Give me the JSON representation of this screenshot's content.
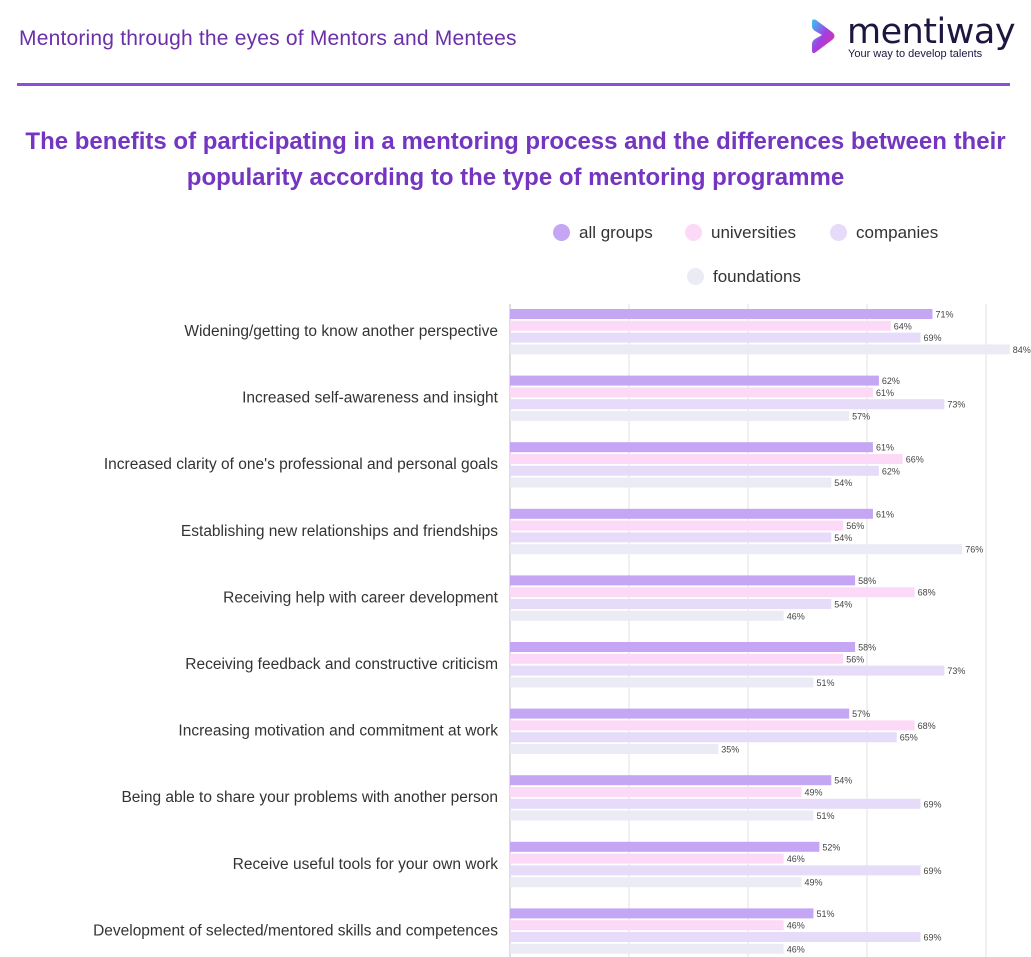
{
  "header": {
    "title": "Mentoring through the eyes of Mentors and Mentees",
    "logo": {
      "word": "mentiway",
      "tagline": "Your way to develop talents",
      "icon": "mentiway-logo-icon"
    }
  },
  "colors": {
    "accent": "#8e4fd8",
    "title": "#7436c0",
    "all_groups": "#c4a6f5",
    "universities": "#fcdaf7",
    "companies": "#e6dcfa",
    "foundations": "#ebebf5"
  },
  "chart_data": {
    "type": "bar",
    "orientation": "horizontal",
    "title": "The benefits of participating in a mentoring process and the differences between their popularity according to the type of mentoring programme",
    "title_lines": [
      "The benefits of participating in a mentoring process and the differences between their",
      "popularity according to the type of mentoring programme"
    ],
    "categories": [
      "Widening/getting to know another perspective",
      "Increased self-awareness and insight",
      "Increased clarity of one's professional and personal goals",
      "Establishing new relationships and friendships",
      "Receiving help with career development",
      "Receiving feedback and constructive criticism",
      "Increasing motivation and commitment at work",
      "Being able to share your problems with another person",
      "Receive useful tools for your own work",
      "Development of selected/mentored skills and competences"
    ],
    "series": [
      {
        "name": "all groups",
        "values": [
          71,
          62,
          61,
          61,
          58,
          58,
          57,
          54,
          52,
          51
        ]
      },
      {
        "name": "universities",
        "values": [
          64,
          61,
          66,
          56,
          68,
          56,
          68,
          49,
          46,
          46
        ]
      },
      {
        "name": "companies",
        "values": [
          69,
          73,
          62,
          54,
          54,
          73,
          65,
          69,
          69,
          69
        ]
      },
      {
        "name": "foundations",
        "values": [
          84,
          57,
          54,
          76,
          46,
          51,
          35,
          51,
          49,
          46
        ]
      }
    ],
    "value_suffix": "%",
    "xlim": [
      0,
      80
    ],
    "gridlines": [
      0,
      20,
      40,
      60,
      80
    ],
    "grid": true,
    "legend_position": "top-right"
  }
}
